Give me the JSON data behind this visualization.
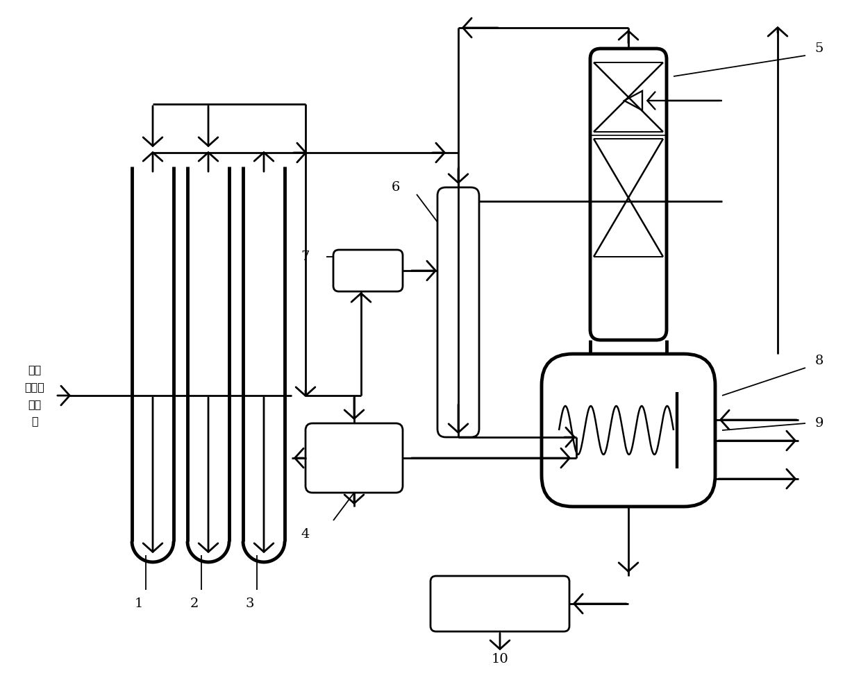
{
  "bg_color": "#ffffff",
  "line_color": "#000000",
  "lw": 2.0,
  "tlw": 3.5,
  "input_label": "来自\n脉硫后\n原料\n气"
}
